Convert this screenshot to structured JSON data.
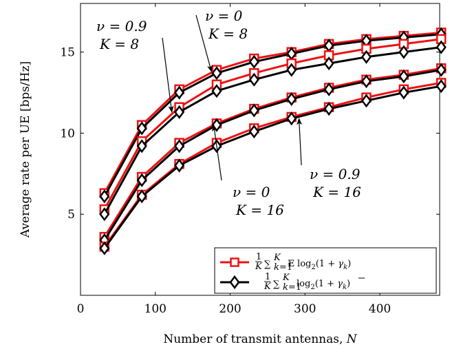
{
  "chart_data": {
    "type": "line",
    "xlabel": "Number of transmit antennas, N",
    "ylabel": "Average rate per UE [bps/Hz]",
    "xlim": [
      0,
      480
    ],
    "ylim": [
      0,
      18
    ],
    "xticks": [
      "0",
      "100",
      "200",
      "300",
      "400"
    ],
    "yticks": [
      "5",
      "10",
      "15"
    ],
    "x": [
      32,
      82,
      132,
      182,
      232,
      282,
      332,
      382,
      432,
      482
    ],
    "grid": false,
    "legend_position": "bottom-right",
    "legend": [
      {
        "label": "1/K ∑_{k=1}^{K} 𝔼 log₂(1 + γ_k)",
        "color": "#ee1111",
        "marker": "square"
      },
      {
        "label": "1/K ∑_{k=1}^{K} log₂(1 + γ̄_k)",
        "color": "#000000",
        "marker": "diamond"
      }
    ],
    "series": [
      {
        "color": "#ee1111",
        "marker": "square",
        "values": [
          6.3,
          10.5,
          12.7,
          13.9,
          14.6,
          15.0,
          15.5,
          15.8,
          16.0,
          16.2
        ]
      },
      {
        "color": "#000000",
        "marker": "diamond",
        "values": [
          6.1,
          10.3,
          12.5,
          13.7,
          14.4,
          14.9,
          15.4,
          15.7,
          15.9,
          16.1
        ]
      },
      {
        "color": "#ee1111",
        "marker": "square",
        "values": [
          5.3,
          9.5,
          11.6,
          13.0,
          13.7,
          14.3,
          14.8,
          15.2,
          15.5,
          15.8
        ]
      },
      {
        "color": "#000000",
        "marker": "diamond",
        "values": [
          5.0,
          9.2,
          11.3,
          12.6,
          13.3,
          13.9,
          14.3,
          14.7,
          15.0,
          15.3
        ]
      },
      {
        "color": "#ee1111",
        "marker": "square",
        "values": [
          3.6,
          7.3,
          9.4,
          10.6,
          11.5,
          12.2,
          12.8,
          13.3,
          13.6,
          14.0
        ]
      },
      {
        "color": "#000000",
        "marker": "diamond",
        "values": [
          3.4,
          7.1,
          9.2,
          10.5,
          11.4,
          12.1,
          12.7,
          13.2,
          13.5,
          13.9
        ]
      },
      {
        "color": "#ee1111",
        "marker": "square",
        "values": [
          3.0,
          6.2,
          8.1,
          9.4,
          10.3,
          11.0,
          11.6,
          12.2,
          12.7,
          13.1
        ]
      },
      {
        "color": "#000000",
        "marker": "diamond",
        "values": [
          2.9,
          6.1,
          8.0,
          9.2,
          10.1,
          10.9,
          11.5,
          12.0,
          12.5,
          12.9
        ]
      }
    ],
    "annotations": [
      {
        "line1": "ν = 0.9",
        "line2": "K = 8",
        "target": [
          122,
          11.3
        ]
      },
      {
        "line1": "ν = 0",
        "line2": "K = 8",
        "target": [
          175,
          13.8
        ]
      },
      {
        "line1": "ν = 0",
        "line2": "K = 16",
        "target": [
          178,
          10.5
        ]
      },
      {
        "line1": "ν = 0.9",
        "line2": "K = 16",
        "target": [
          292,
          10.9
        ]
      }
    ]
  }
}
